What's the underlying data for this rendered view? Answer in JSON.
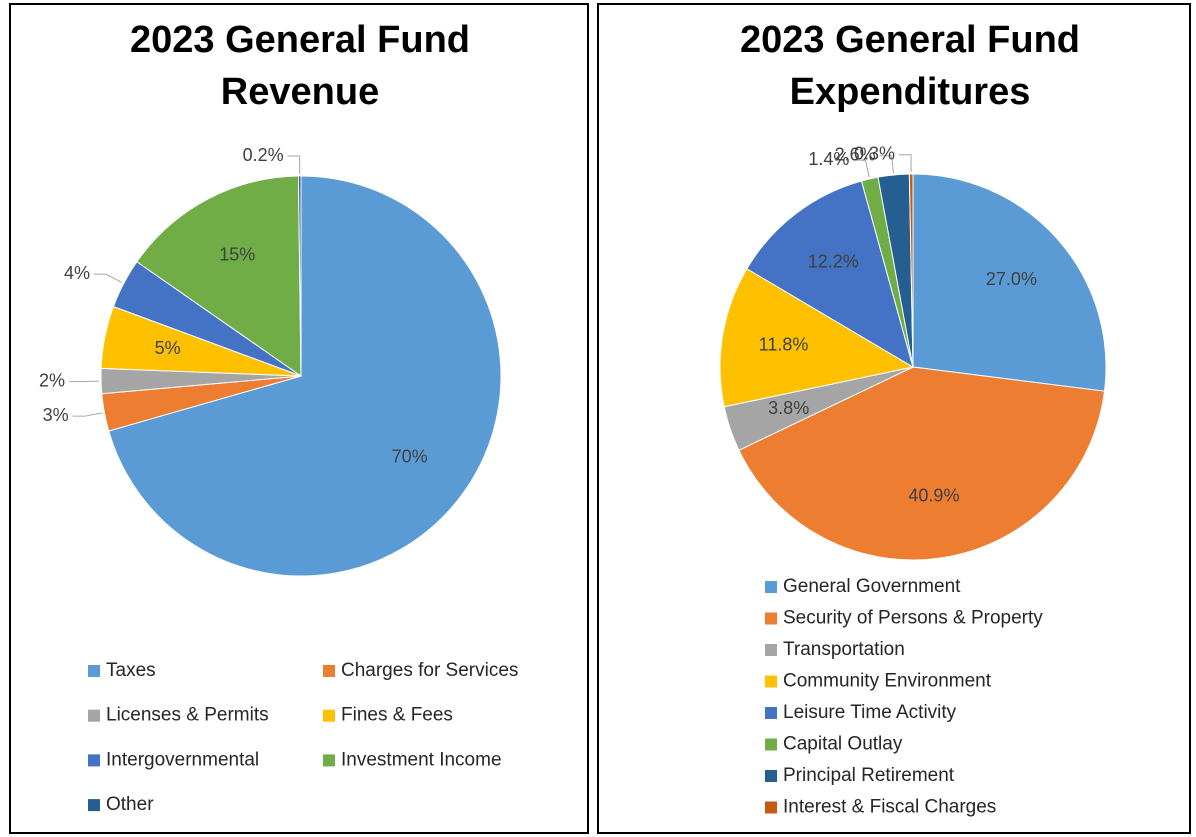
{
  "chart_data": [
    {
      "type": "pie",
      "title": "2023 General Fund Revenue",
      "categories": [
        "Taxes",
        "Charges for Services",
        "Licenses & Permits",
        "Fines & Fees",
        "Intergovernmental",
        "Investment Income",
        "Other"
      ],
      "values": [
        70,
        3,
        2,
        5,
        4,
        15,
        0.2
      ],
      "value_labels": [
        "70%",
        "3%",
        "2%",
        "5%",
        "4%",
        "15%",
        "0.2%"
      ],
      "colors": [
        "#5b9bd5",
        "#ed7d31",
        "#a5a5a5",
        "#ffc000",
        "#4472c4",
        "#70ad47",
        "#255e91"
      ],
      "legend": "bottom"
    },
    {
      "type": "pie",
      "title": "2023 General Fund Expenditures",
      "categories": [
        "General Government",
        "Security of Persons & Property",
        "Transportation",
        "Community Environment",
        "Leisure Time Activity",
        "Capital Outlay",
        "Principal Retirement",
        "Interest & Fiscal Charges"
      ],
      "values": [
        27.0,
        40.9,
        3.8,
        11.8,
        12.2,
        1.4,
        2.6,
        0.3
      ],
      "value_labels": [
        "27.0%",
        "40.9%",
        "3.8%",
        "11.8%",
        "12.2%",
        "1.4%",
        "2.6%",
        "0.3%"
      ],
      "colors": [
        "#5b9bd5",
        "#ed7d31",
        "#a5a5a5",
        "#ffc000",
        "#4472c4",
        "#70ad47",
        "#255e91",
        "#c55a11"
      ],
      "legend": "bottom"
    }
  ]
}
